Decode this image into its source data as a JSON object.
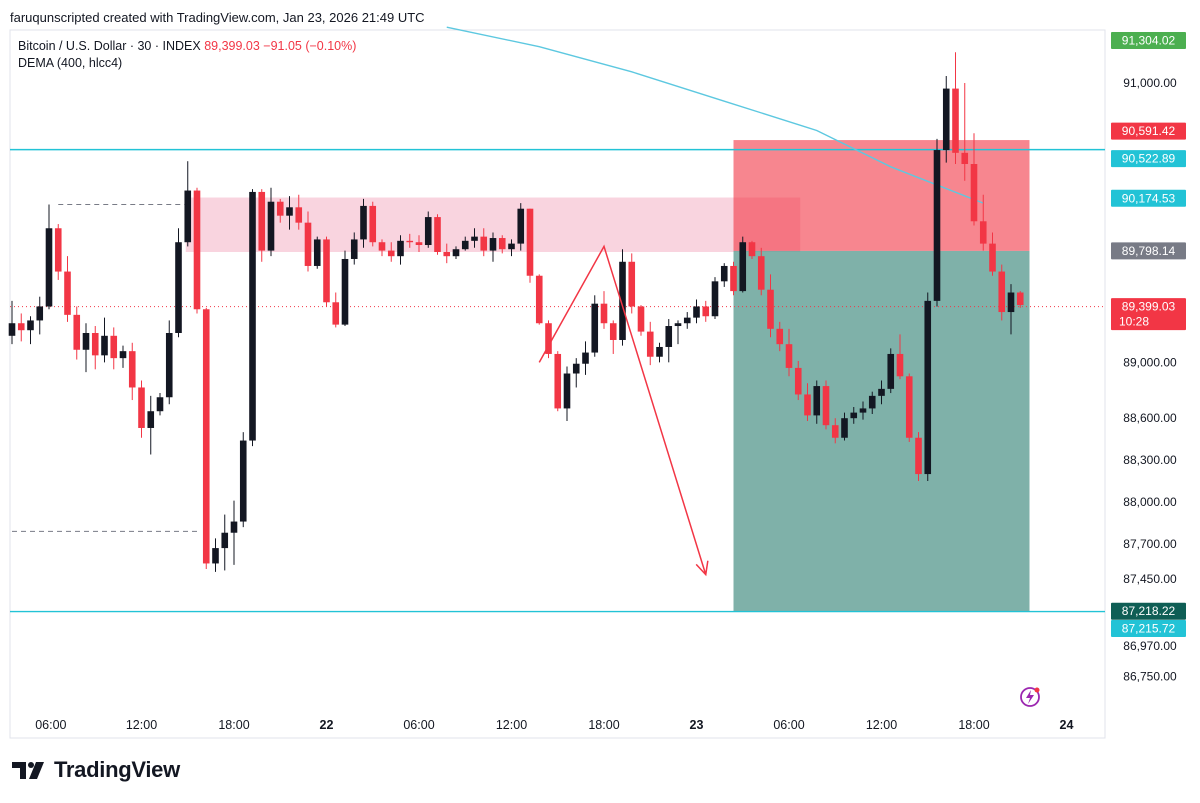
{
  "header": {
    "attribution": "faruqunscripted created with TradingView.com, Jan 23, 2026 21:49 UTC"
  },
  "legend": {
    "symbol": "Bitcoin / U.S. Dollar · 30 · INDEX",
    "last": "89,399.03",
    "change": "−91.05 (−0.10%)",
    "indicator": "DEMA (400, hlcc4)"
  },
  "brand": {
    "name": "TradingView"
  },
  "colors": {
    "up": "#131722",
    "down": "#f23645",
    "dema": "#5dc8e0",
    "hline": "#22c3d6",
    "supply_zone": "#f8cfdc",
    "stop_zone": "#f23645",
    "target_zone": "#5f9e94"
  },
  "chart_data": {
    "type": "candlestick",
    "symbol": "Bitcoin / U.S. Dollar",
    "interval": "30",
    "exchange": "INDEX",
    "last_price": 89399.03,
    "change": -91.05,
    "change_pct": -0.1,
    "countdown": "10:28",
    "y_range": [
      86600,
      91400
    ],
    "x_tick_labels": [
      "06:00",
      "12:00",
      "18:00",
      "22",
      "06:00",
      "12:00",
      "18:00",
      "23",
      "06:00",
      "12:00",
      "18:00",
      "24"
    ],
    "y_tick_labels": [
      91000,
      89000,
      88600,
      88300,
      88000,
      87700,
      87450,
      86970,
      86750
    ],
    "price_tags": [
      {
        "label": "91,304.02",
        "value": 91304.02,
        "color": "#4caf50"
      },
      {
        "label": "90,591.42",
        "value": 90591.42,
        "color": "#f23645"
      },
      {
        "label": "90,522.89",
        "value": 90522.89,
        "color": "#22c3d6"
      },
      {
        "label": "90,174.53",
        "value": 90174.53,
        "color": "#22c3d6"
      },
      {
        "label": "89,798.14",
        "value": 89798.14,
        "color": "#787b86"
      },
      {
        "label": "89,399.03",
        "value": 89399.03,
        "color": "#f23645",
        "sub": "10:28"
      },
      {
        "label": "87,218.22",
        "value": 87218.22,
        "color": "#0f5e55"
      },
      {
        "label": "87,215.72",
        "value": 87215.72,
        "color": "#22c3d6"
      }
    ],
    "horizontal_lines": [
      90522.89,
      87215.72
    ],
    "dashed_levels": [
      {
        "value": 90130,
        "from_bar": 5,
        "to_bar": 19
      },
      {
        "value": 87790,
        "from_bar": 0,
        "to_bar": 20
      }
    ],
    "supply_zone": {
      "top": 90180,
      "bottom": 89790,
      "from_bar": 19,
      "to_bar": 85
    },
    "short_position": {
      "entry": 89798.14,
      "stop": 90591.42,
      "target": 87218.22,
      "from_bar": 78,
      "to_bar": 110
    },
    "projection_arrow": [
      [
        57,
        89000
      ],
      [
        64,
        89830
      ],
      [
        75,
        87480
      ]
    ],
    "dema": [
      [
        47,
        91400
      ],
      [
        57,
        91260
      ],
      [
        67,
        91080
      ],
      [
        77,
        90870
      ],
      [
        87,
        90660
      ],
      [
        95,
        90400
      ],
      [
        105,
        90140
      ]
    ],
    "candles": [
      [
        89190,
        89440,
        89130,
        89280
      ],
      [
        89280,
        89350,
        89150,
        89230
      ],
      [
        89230,
        89330,
        89130,
        89300
      ],
      [
        89300,
        89470,
        89200,
        89400
      ],
      [
        89400,
        90130,
        89380,
        89960
      ],
      [
        89960,
        89990,
        89590,
        89650
      ],
      [
        89650,
        89760,
        89290,
        89340
      ],
      [
        89340,
        89400,
        89020,
        89090
      ],
      [
        89090,
        89280,
        88930,
        89210
      ],
      [
        89210,
        89260,
        88950,
        89050
      ],
      [
        89050,
        89320,
        89000,
        89190
      ],
      [
        89190,
        89250,
        88950,
        89030
      ],
      [
        89030,
        89120,
        88960,
        89080
      ],
      [
        89080,
        89140,
        88730,
        88820
      ],
      [
        88820,
        88870,
        88460,
        88530
      ],
      [
        88530,
        88760,
        88340,
        88650
      ],
      [
        88650,
        88780,
        88620,
        88750
      ],
      [
        88750,
        89300,
        88700,
        89210
      ],
      [
        89210,
        89960,
        89180,
        89860
      ],
      [
        89860,
        90440,
        89830,
        90230
      ],
      [
        90230,
        90250,
        89350,
        89380
      ],
      [
        89380,
        89390,
        87520,
        87560
      ],
      [
        87560,
        87740,
        87500,
        87670
      ],
      [
        87670,
        87910,
        87510,
        87780
      ],
      [
        87780,
        88010,
        87550,
        87860
      ],
      [
        87860,
        88500,
        87820,
        88440
      ],
      [
        88440,
        90240,
        88400,
        90220
      ],
      [
        90220,
        90240,
        89720,
        89800
      ],
      [
        89800,
        90250,
        89760,
        90150
      ],
      [
        90150,
        90170,
        90000,
        90050
      ],
      [
        90050,
        90190,
        89950,
        90110
      ],
      [
        90110,
        90200,
        89950,
        90000
      ],
      [
        90000,
        90080,
        89650,
        89690
      ],
      [
        89690,
        89900,
        89670,
        89880
      ],
      [
        89880,
        89900,
        89400,
        89430
      ],
      [
        89430,
        89500,
        89250,
        89270
      ],
      [
        89270,
        89800,
        89260,
        89740
      ],
      [
        89740,
        89930,
        89700,
        89880
      ],
      [
        89880,
        90170,
        89820,
        90120
      ],
      [
        90120,
        90150,
        89830,
        89860
      ],
      [
        89860,
        89880,
        89760,
        89800
      ],
      [
        89800,
        89860,
        89720,
        89760
      ],
      [
        89760,
        89910,
        89700,
        89870
      ],
      [
        89870,
        89920,
        89820,
        89860
      ],
      [
        89860,
        89910,
        89790,
        89840
      ],
      [
        89840,
        90080,
        89820,
        90040
      ],
      [
        90040,
        90060,
        89770,
        89790
      ],
      [
        89790,
        89850,
        89710,
        89760
      ],
      [
        89760,
        89830,
        89740,
        89810
      ],
      [
        89810,
        89900,
        89800,
        89870
      ],
      [
        89870,
        89960,
        89820,
        89900
      ],
      [
        89900,
        89960,
        89760,
        89800
      ],
      [
        89800,
        89930,
        89720,
        89890
      ],
      [
        89890,
        89910,
        89780,
        89810
      ],
      [
        89810,
        89880,
        89760,
        89850
      ],
      [
        89850,
        90140,
        89800,
        90100
      ],
      [
        90100,
        90100,
        89570,
        89620
      ],
      [
        89620,
        89630,
        89270,
        89280
      ],
      [
        89280,
        89300,
        89030,
        89060
      ],
      [
        89060,
        89080,
        88650,
        88670
      ],
      [
        88670,
        88970,
        88580,
        88920
      ],
      [
        88920,
        89030,
        88820,
        88990
      ],
      [
        88990,
        89150,
        88910,
        89070
      ],
      [
        89070,
        89480,
        89040,
        89420
      ],
      [
        89420,
        89510,
        89240,
        89280
      ],
      [
        89280,
        89300,
        89060,
        89160
      ],
      [
        89160,
        89810,
        89120,
        89720
      ],
      [
        89720,
        89780,
        89350,
        89400
      ],
      [
        89400,
        89410,
        89190,
        89220
      ],
      [
        89220,
        89290,
        88980,
        89040
      ],
      [
        89040,
        89140,
        89000,
        89110
      ],
      [
        89110,
        89310,
        89000,
        89260
      ],
      [
        89260,
        89300,
        89130,
        89280
      ],
      [
        89280,
        89360,
        89240,
        89320
      ],
      [
        89320,
        89450,
        89280,
        89400
      ],
      [
        89400,
        89440,
        89290,
        89330
      ],
      [
        89330,
        89610,
        89310,
        89580
      ],
      [
        89580,
        89710,
        89540,
        89690
      ],
      [
        89690,
        89720,
        89480,
        89510
      ],
      [
        89510,
        89900,
        89500,
        89860
      ],
      [
        89860,
        89870,
        89740,
        89760
      ],
      [
        89760,
        89820,
        89480,
        89520
      ],
      [
        89520,
        89630,
        89180,
        89240
      ],
      [
        89240,
        89290,
        89080,
        89130
      ],
      [
        89130,
        89240,
        88900,
        88960
      ],
      [
        88960,
        89010,
        88730,
        88770
      ],
      [
        88770,
        88850,
        88580,
        88620
      ],
      [
        88620,
        88870,
        88560,
        88830
      ],
      [
        88830,
        88870,
        88520,
        88550
      ],
      [
        88550,
        88600,
        88420,
        88460
      ],
      [
        88460,
        88640,
        88440,
        88600
      ],
      [
        88600,
        88680,
        88560,
        88640
      ],
      [
        88640,
        88720,
        88590,
        88670
      ],
      [
        88670,
        88790,
        88630,
        88760
      ],
      [
        88760,
        88870,
        88700,
        88810
      ],
      [
        88810,
        89100,
        88780,
        89060
      ],
      [
        89060,
        89200,
        88880,
        88900
      ],
      [
        88900,
        88920,
        88430,
        88460
      ],
      [
        88460,
        88500,
        88150,
        88200
      ],
      [
        88200,
        89500,
        88150,
        89440
      ],
      [
        89440,
        90600,
        89400,
        90520
      ],
      [
        90520,
        91050,
        90430,
        90960
      ],
      [
        90960,
        91220,
        90420,
        90500
      ],
      [
        90500,
        91000,
        90300,
        90420
      ],
      [
        90420,
        90640,
        89980,
        90010
      ],
      [
        90010,
        90200,
        89800,
        89850
      ],
      [
        89850,
        89930,
        89620,
        89650
      ],
      [
        89650,
        89700,
        89300,
        89360
      ],
      [
        89360,
        89560,
        89200,
        89500
      ],
      [
        89500,
        89510,
        89390,
        89410
      ]
    ]
  }
}
